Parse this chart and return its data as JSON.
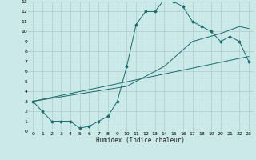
{
  "xlabel": "Humidex (Indice chaleur)",
  "bg_color": "#cce9e9",
  "grid_color": "#aacccc",
  "line_color": "#1a6b6b",
  "xlim": [
    -0.5,
    23.5
  ],
  "ylim": [
    0,
    13
  ],
  "xticks": [
    0,
    1,
    2,
    3,
    4,
    5,
    6,
    7,
    8,
    9,
    10,
    11,
    12,
    13,
    14,
    15,
    16,
    17,
    18,
    19,
    20,
    21,
    22,
    23
  ],
  "yticks": [
    0,
    1,
    2,
    3,
    4,
    5,
    6,
    7,
    8,
    9,
    10,
    11,
    12,
    13
  ],
  "line1_x": [
    0,
    1,
    2,
    3,
    4,
    5,
    6,
    7,
    8,
    9,
    10,
    11,
    12,
    13,
    14,
    15,
    16,
    17,
    18,
    19,
    20,
    21,
    22,
    23
  ],
  "line1_y": [
    3,
    2,
    1,
    1,
    1,
    0.3,
    0.5,
    1,
    1.5,
    3,
    6.5,
    10.7,
    12,
    12,
    13.2,
    13,
    12.5,
    11,
    10.5,
    10,
    9,
    9.5,
    9,
    7
  ],
  "line2_x": [
    0,
    23
  ],
  "line2_y": [
    3,
    7.5
  ],
  "line3_x": [
    0,
    10,
    14,
    17,
    20,
    22,
    23
  ],
  "line3_y": [
    3,
    4.5,
    6.5,
    9,
    9.8,
    10.5,
    10.3
  ]
}
